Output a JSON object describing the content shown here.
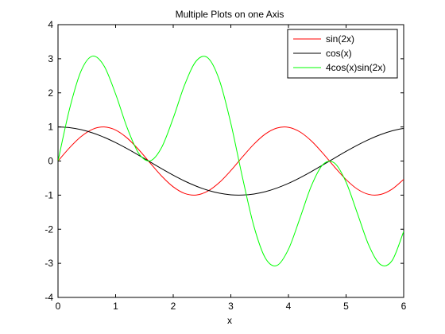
{
  "chart_data": {
    "type": "line",
    "title": "Multiple Plots on one Axis",
    "xlabel": "x",
    "ylabel": "",
    "xlim": [
      0,
      6
    ],
    "ylim": [
      -4,
      4
    ],
    "xticks": [
      0,
      1,
      2,
      3,
      4,
      5,
      6
    ],
    "yticks": [
      -4,
      -3,
      -2,
      -1,
      0,
      1,
      2,
      3,
      4
    ],
    "grid": false,
    "legend_position": "top-right",
    "x": [
      0.0,
      0.2,
      0.4,
      0.6,
      0.8,
      1.0,
      1.2,
      1.4,
      1.6,
      1.8,
      2.0,
      2.2,
      2.4,
      2.6,
      2.8,
      3.0,
      3.2,
      3.4,
      3.6,
      3.8,
      4.0,
      4.2,
      4.4,
      4.6,
      4.8,
      5.0,
      5.2,
      5.4,
      5.6,
      5.8,
      6.0
    ],
    "series": [
      {
        "name": "sin(2x)",
        "color": "#ff0000",
        "values": [
          0.0,
          0.389,
          0.717,
          0.932,
          1.0,
          0.909,
          0.675,
          0.335,
          -0.058,
          -0.443,
          -0.757,
          -0.952,
          -0.996,
          -0.883,
          -0.631,
          -0.279,
          0.117,
          0.494,
          0.794,
          0.968,
          0.989,
          0.854,
          0.585,
          0.222,
          -0.175,
          -0.544,
          -0.828,
          -0.981,
          -0.979,
          -0.823,
          -0.537
        ]
      },
      {
        "name": "cos(x)",
        "color": "#000000",
        "values": [
          1.0,
          0.98,
          0.921,
          0.825,
          0.697,
          0.54,
          0.362,
          0.17,
          -0.029,
          -0.227,
          -0.416,
          -0.589,
          -0.737,
          -0.857,
          -0.942,
          -0.99,
          -0.998,
          -0.967,
          -0.897,
          -0.791,
          -0.654,
          -0.49,
          -0.307,
          -0.112,
          0.087,
          0.284,
          0.469,
          0.635,
          0.776,
          0.886,
          0.96
        ]
      },
      {
        "name": "4cos(x)sin(2x)",
        "color": "#00ff00",
        "values": [
          0.0,
          1.525,
          2.641,
          3.077,
          2.788,
          1.965,
          0.978,
          0.228,
          0.007,
          0.402,
          1.26,
          2.243,
          2.936,
          3.027,
          2.378,
          1.105,
          -0.467,
          -1.911,
          -2.849,
          -3.063,
          -2.588,
          -1.674,
          -0.719,
          -0.099,
          -0.061,
          -0.618,
          -1.553,
          -2.492,
          -3.039,
          -2.917,
          -2.062
        ]
      }
    ]
  }
}
